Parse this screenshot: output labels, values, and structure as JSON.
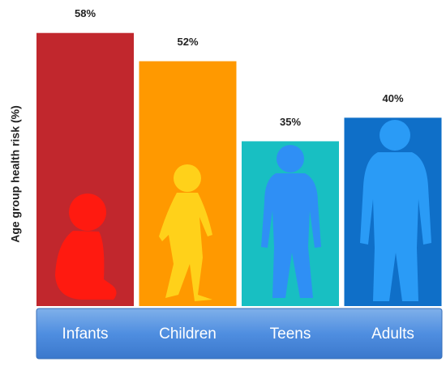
{
  "chart_data": {
    "type": "bar",
    "y_label": "Age group health risk (%)",
    "categories": [
      "Infants",
      "Children",
      "Teens",
      "Adults"
    ],
    "values": [
      58,
      52,
      35,
      40
    ],
    "value_labels": [
      "58%",
      "52%",
      "35%",
      "40%"
    ],
    "colors": [
      "#c1272d",
      "#ff9900",
      "#18bfc2",
      "#0f6fc8"
    ],
    "ylim": [
      0,
      65
    ]
  }
}
